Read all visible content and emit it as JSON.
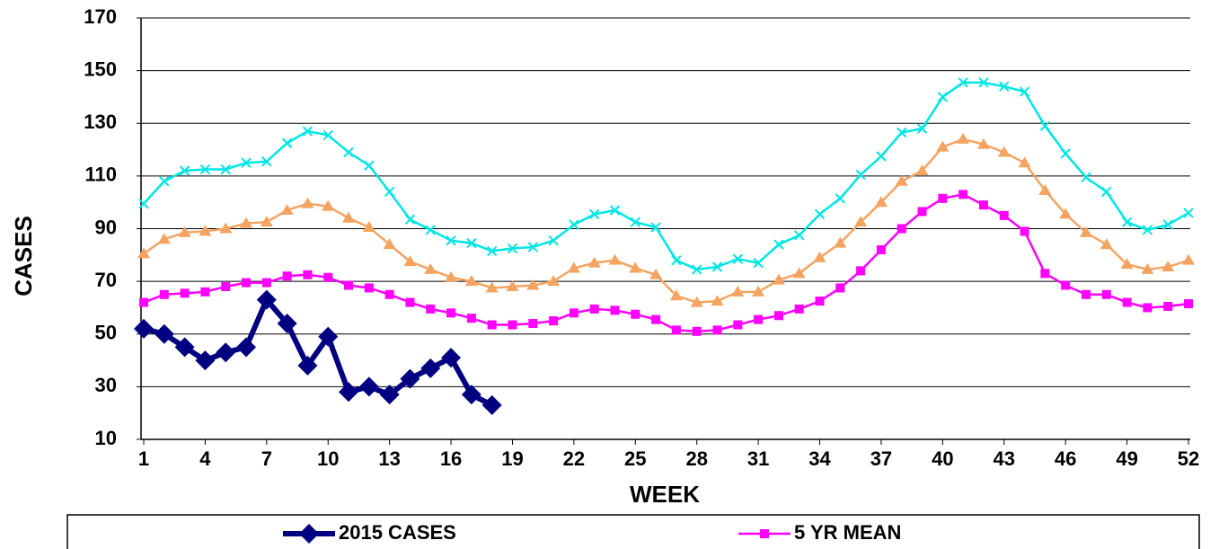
{
  "chart_data": {
    "type": "line",
    "x_label": "WEEK",
    "y_label": "CASES",
    "x": [
      1,
      2,
      3,
      4,
      5,
      6,
      7,
      8,
      9,
      10,
      11,
      12,
      13,
      14,
      15,
      16,
      17,
      18,
      19,
      20,
      21,
      22,
      23,
      24,
      25,
      26,
      27,
      28,
      29,
      30,
      31,
      32,
      33,
      34,
      35,
      36,
      37,
      38,
      39,
      40,
      41,
      42,
      43,
      44,
      45,
      46,
      47,
      48,
      49,
      50,
      51,
      52
    ],
    "xlim": [
      1,
      52
    ],
    "xticks": [
      1,
      4,
      7,
      10,
      13,
      16,
      19,
      22,
      25,
      28,
      31,
      34,
      37,
      40,
      43,
      46,
      49,
      52
    ],
    "ylim": [
      10,
      170
    ],
    "yticks": [
      10,
      30,
      50,
      70,
      90,
      110,
      130,
      150,
      170
    ],
    "grid": true,
    "series": [
      {
        "color": "#00e5e5",
        "marker": "x",
        "values": [
          99.5,
          108,
          112,
          112.5,
          112.5,
          115,
          115.5,
          122.5,
          127,
          125.5,
          119,
          114,
          104,
          93.5,
          89.5,
          85.5,
          84.5,
          81.5,
          82.5,
          83,
          85.5,
          91.5,
          95.5,
          97,
          92.5,
          90.5,
          78,
          74.5,
          75.5,
          78.5,
          77,
          84,
          87.5,
          95.5,
          101.5,
          110.5,
          117.5,
          126.5,
          128,
          140,
          145.5,
          145.5,
          144,
          142,
          129,
          118.5,
          109.5,
          104,
          92.5,
          89.5,
          91.5,
          96
        ]
      },
      {
        "color": "#f4a460",
        "marker": "triangle",
        "values": [
          80.5,
          86,
          88.5,
          89,
          90,
          92,
          92.5,
          97,
          99.5,
          98.5,
          94,
          90.5,
          84,
          77.5,
          74.5,
          71.5,
          70,
          67.5,
          68,
          68.5,
          70,
          75,
          77,
          78,
          75,
          72.5,
          64.5,
          62,
          62.5,
          66,
          66,
          70.5,
          73,
          79,
          84.5,
          92.5,
          100,
          108,
          112,
          121,
          124,
          122,
          119,
          115,
          104.5,
          95.5,
          88.5,
          84,
          76.5,
          74.5,
          75.5,
          78
        ]
      },
      {
        "name": "5 YR MEAN",
        "color": "#ff00ff",
        "marker": "square",
        "values": [
          62,
          65,
          65.5,
          66,
          68,
          69.5,
          69.5,
          72,
          72.5,
          71.5,
          68.5,
          67.5,
          65,
          62,
          59.5,
          58,
          56,
          53.5,
          53.5,
          54,
          55,
          58,
          59.5,
          59,
          57.5,
          55.5,
          51.5,
          51,
          51.5,
          53.5,
          55.5,
          57,
          59.5,
          62.5,
          67.5,
          74,
          82,
          90,
          96.5,
          101.5,
          103,
          99,
          95,
          89,
          73,
          68.5,
          65,
          65,
          62,
          60,
          60.5,
          61.5
        ]
      },
      {
        "name": "2015 CASES",
        "color": "#000080",
        "marker": "diamond",
        "values": [
          52,
          50,
          45,
          40,
          43,
          45,
          63,
          54,
          38,
          49,
          28,
          30,
          27,
          33,
          37,
          41,
          27,
          23,
          null,
          null,
          null,
          null,
          null,
          null,
          null,
          null,
          null,
          null,
          null,
          null,
          null,
          null,
          null,
          null,
          null,
          null,
          null,
          null,
          null,
          null,
          null,
          null,
          null,
          null,
          null,
          null,
          null,
          null,
          null,
          null,
          null,
          null
        ]
      }
    ]
  }
}
